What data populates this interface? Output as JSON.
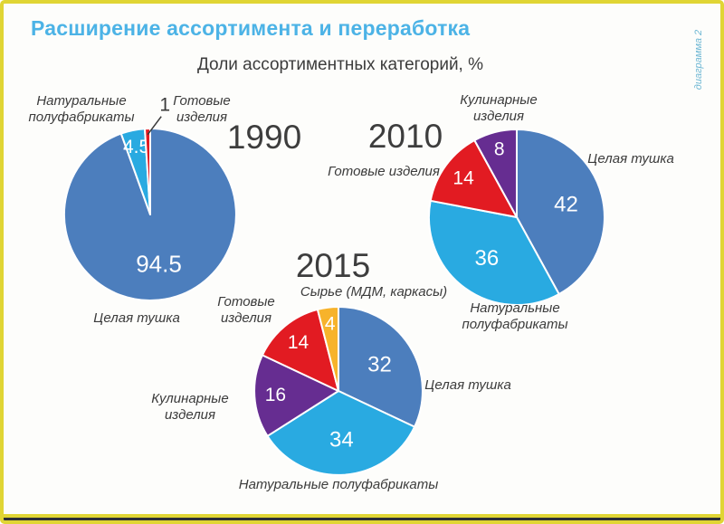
{
  "page": {
    "title": "Расширение ассортимента и переработка",
    "subtitle": "Доли ассортиментных категорий, %",
    "side_note": "диаграмма 2",
    "accent_color": "#4cb3e6",
    "frame_color": "#e0d534"
  },
  "chart_data": [
    {
      "type": "pie",
      "title": "1990",
      "unit": "%",
      "legend_position": "around-slices",
      "slices": [
        {
          "label": "Целая тушка",
          "value": 94.5,
          "color": "#4c7ebd"
        },
        {
          "label": "Натуральные полуфабрикаты",
          "value": 4.5,
          "color": "#29aae1"
        },
        {
          "label": "Готовые изделия",
          "value": 1,
          "color": "#e21b22",
          "label_outside": true
        }
      ]
    },
    {
      "type": "pie",
      "title": "2010",
      "unit": "%",
      "legend_position": "around-slices",
      "slices": [
        {
          "label": "Целая тушка",
          "value": 42,
          "color": "#4c7ebd"
        },
        {
          "label": "Натуральные полуфабрикаты",
          "value": 36,
          "color": "#29aae1"
        },
        {
          "label": "Готовые изделия",
          "value": 14,
          "color": "#e21b22"
        },
        {
          "label": "Кулинарные изделия",
          "value": 8,
          "color": "#662d91"
        }
      ]
    },
    {
      "type": "pie",
      "title": "2015",
      "unit": "%",
      "legend_position": "around-slices",
      "slices": [
        {
          "label": "Целая тушка",
          "value": 32,
          "color": "#4c7ebd"
        },
        {
          "label": "Натуральные полуфабрикаты",
          "value": 34,
          "color": "#29aae1"
        },
        {
          "label": "Кулинарные изделия",
          "value": 16,
          "color": "#662d91"
        },
        {
          "label": "Готовые изделия",
          "value": 14,
          "color": "#e21b22"
        },
        {
          "label": "Сырье (МДМ, каркасы)",
          "value": 4,
          "color": "#f7b32b"
        }
      ]
    }
  ]
}
